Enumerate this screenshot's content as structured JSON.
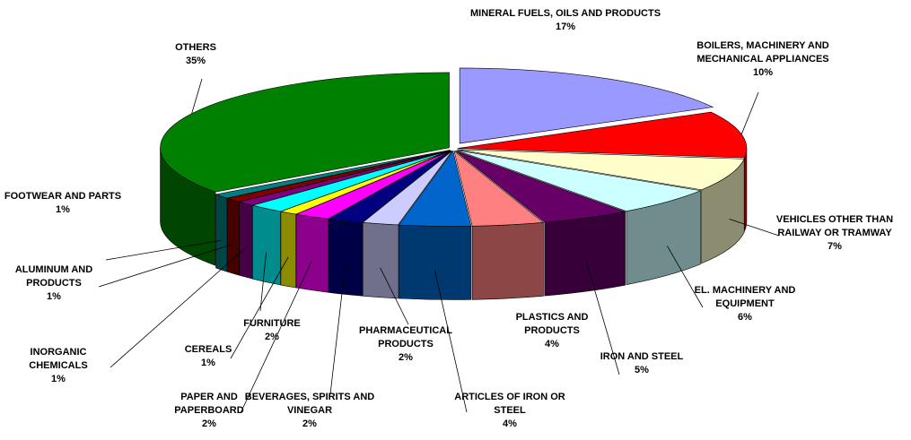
{
  "chart_data": {
    "type": "pie",
    "categories": [
      "MINERAL FUELS, OILS AND PRODUCTS",
      "BOILERS, MACHINERY AND MECHANICAL APPLIANCES",
      "VEHICLES OTHER THAN RAILWAY OR TRAMWAY",
      "EL. MACHINERY AND EQUIPMENT",
      "IRON AND STEEL",
      "PLASTICS AND PRODUCTS",
      "ARTICLES OF IRON OR STEEL",
      "PHARMACEUTICAL PRODUCTS",
      "BEVERAGES, SPIRITS AND VINEGAR",
      "PAPER AND PAPERBOARD",
      "CEREALS",
      "FURNITURE",
      "INORGANIC CHEMICALS",
      "ALUMINUM AND PRODUCTS",
      "FOOTWEAR AND PARTS",
      "OTHERS"
    ],
    "values": [
      17,
      10,
      7,
      6,
      5,
      4,
      4,
      2,
      2,
      2,
      1,
      2,
      1,
      1,
      1,
      35
    ],
    "value_labels": [
      "17%",
      "10%",
      "7%",
      "6%",
      "5%",
      "4%",
      "4%",
      "2%",
      "2%",
      "2%",
      "1%",
      "2%",
      "1%",
      "1%",
      "1%",
      "35%"
    ],
    "colors": [
      "#9999ff",
      "#ff0000",
      "#ffffcc",
      "#ccffff",
      "#660066",
      "#ff8080",
      "#0066cc",
      "#ccccff",
      "#000080",
      "#ff00ff",
      "#ffff00",
      "#00ffff",
      "#800080",
      "#800000",
      "#008080",
      "#008000"
    ]
  }
}
